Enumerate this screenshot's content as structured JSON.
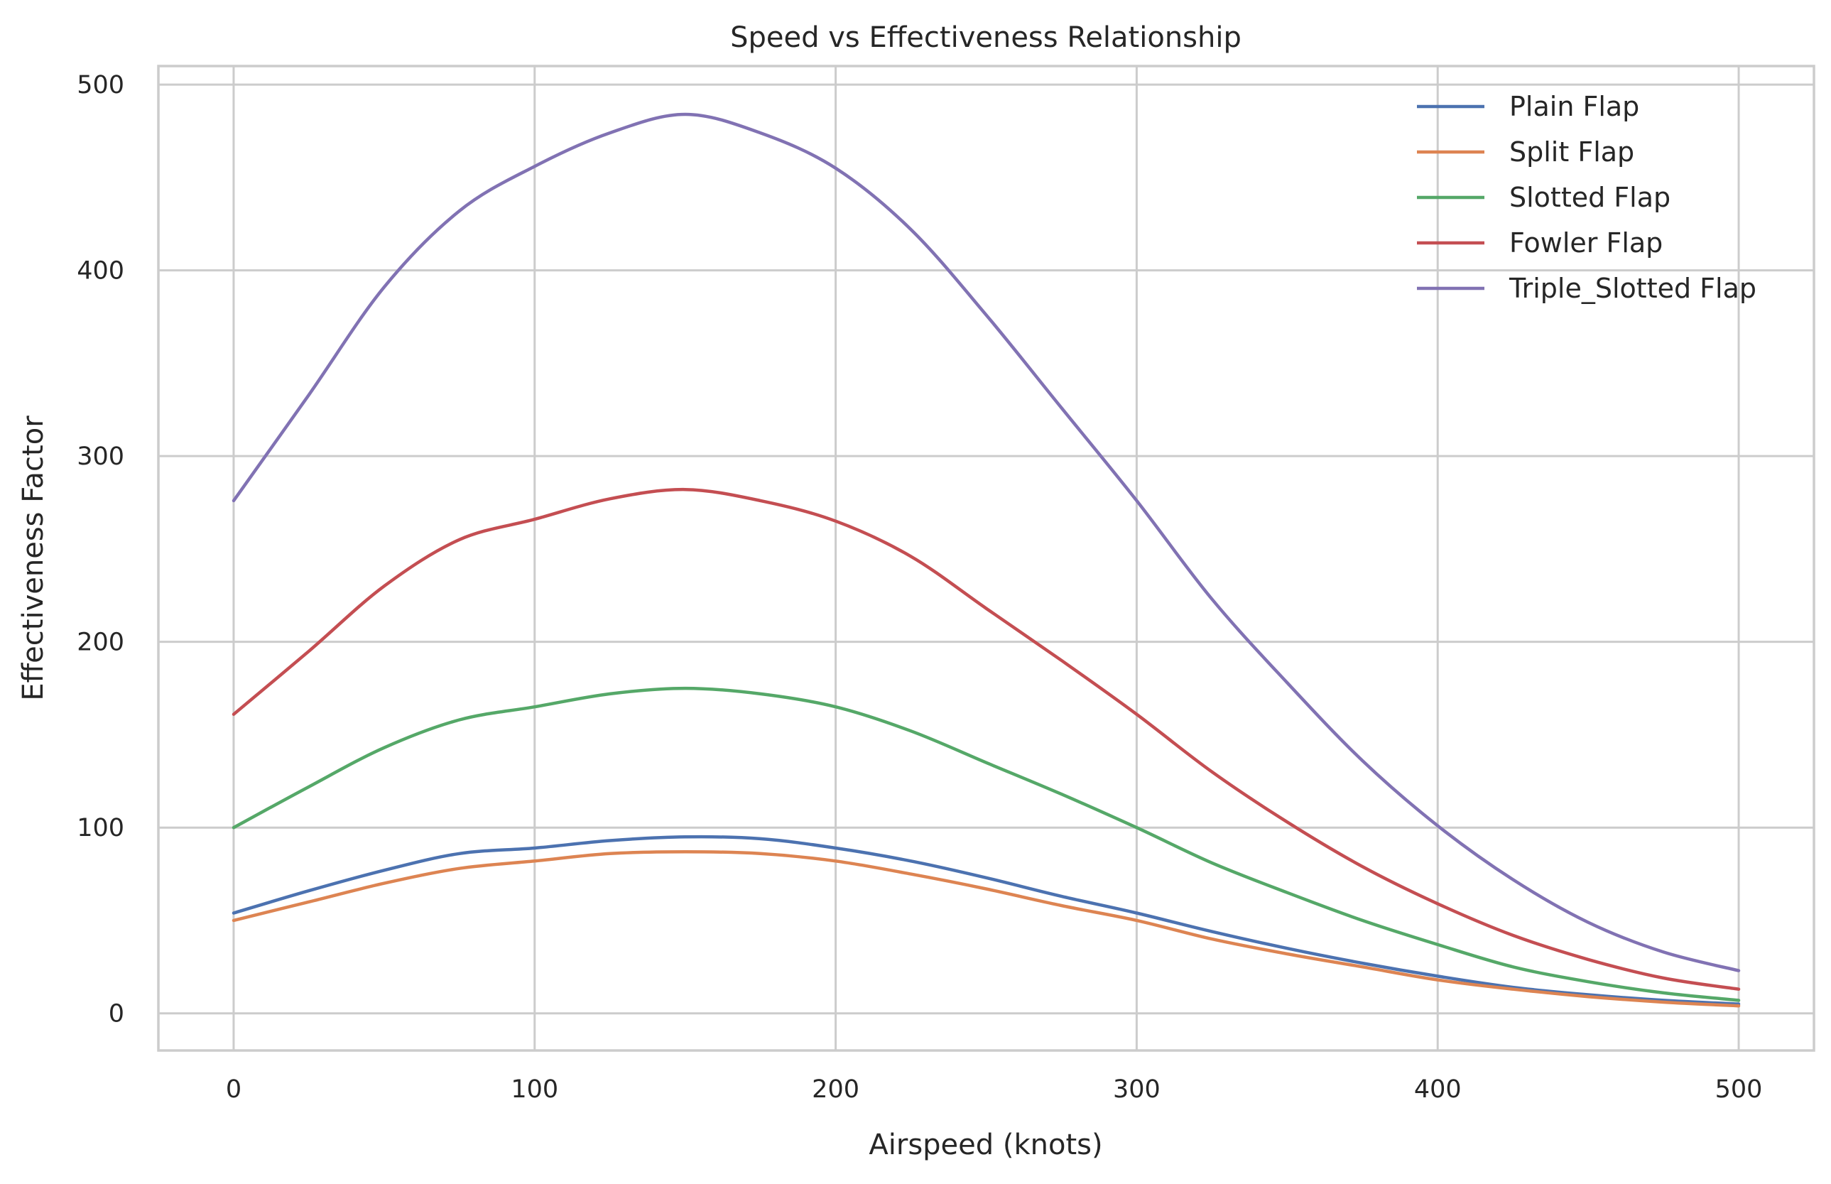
{
  "chart_data": {
    "type": "line",
    "title": "Speed vs Effectiveness Relationship",
    "xlabel": "Airspeed (knots)",
    "ylabel": "Effectiveness Factor",
    "xlim": [
      -25,
      525
    ],
    "ylim": [
      -20,
      510
    ],
    "xticks": [
      0,
      100,
      200,
      300,
      400,
      500
    ],
    "yticks": [
      0,
      100,
      200,
      300,
      400,
      500
    ],
    "grid": true,
    "legend_position": "top-right",
    "x": [
      0,
      25,
      50,
      75,
      100,
      125,
      150,
      175,
      200,
      225,
      250,
      275,
      300,
      325,
      350,
      375,
      400,
      425,
      450,
      475,
      500
    ],
    "series": [
      {
        "name": "Plain Flap",
        "color": "#4c72b0",
        "values": [
          54,
          66,
          77,
          86,
          89,
          93,
          95,
          94,
          89,
          82,
          73,
          63,
          54,
          44,
          35,
          27,
          20,
          14,
          10,
          7,
          5
        ]
      },
      {
        "name": "Split Flap",
        "color": "#dd8452",
        "values": [
          50,
          60,
          70,
          78,
          82,
          86,
          87,
          86,
          82,
          75,
          67,
          58,
          50,
          40,
          32,
          25,
          18,
          13,
          9,
          6,
          4
        ]
      },
      {
        "name": "Slotted Flap",
        "color": "#55a868",
        "values": [
          100,
          122,
          143,
          158,
          165,
          172,
          175,
          172,
          165,
          152,
          135,
          118,
          100,
          81,
          65,
          50,
          37,
          25,
          17,
          11,
          7
        ]
      },
      {
        "name": "Fowler Flap",
        "color": "#c44e52",
        "values": [
          161,
          195,
          230,
          255,
          266,
          277,
          282,
          276,
          265,
          246,
          218,
          190,
          161,
          130,
          103,
          79,
          59,
          42,
          29,
          19,
          13
        ]
      },
      {
        "name": "Triple_Slotted Flap",
        "color": "#8172b3",
        "values": [
          276,
          333,
          391,
          432,
          456,
          474,
          484,
          474,
          455,
          422,
          376,
          326,
          276,
          223,
          178,
          136,
          101,
          72,
          49,
          33,
          23
        ]
      }
    ]
  }
}
